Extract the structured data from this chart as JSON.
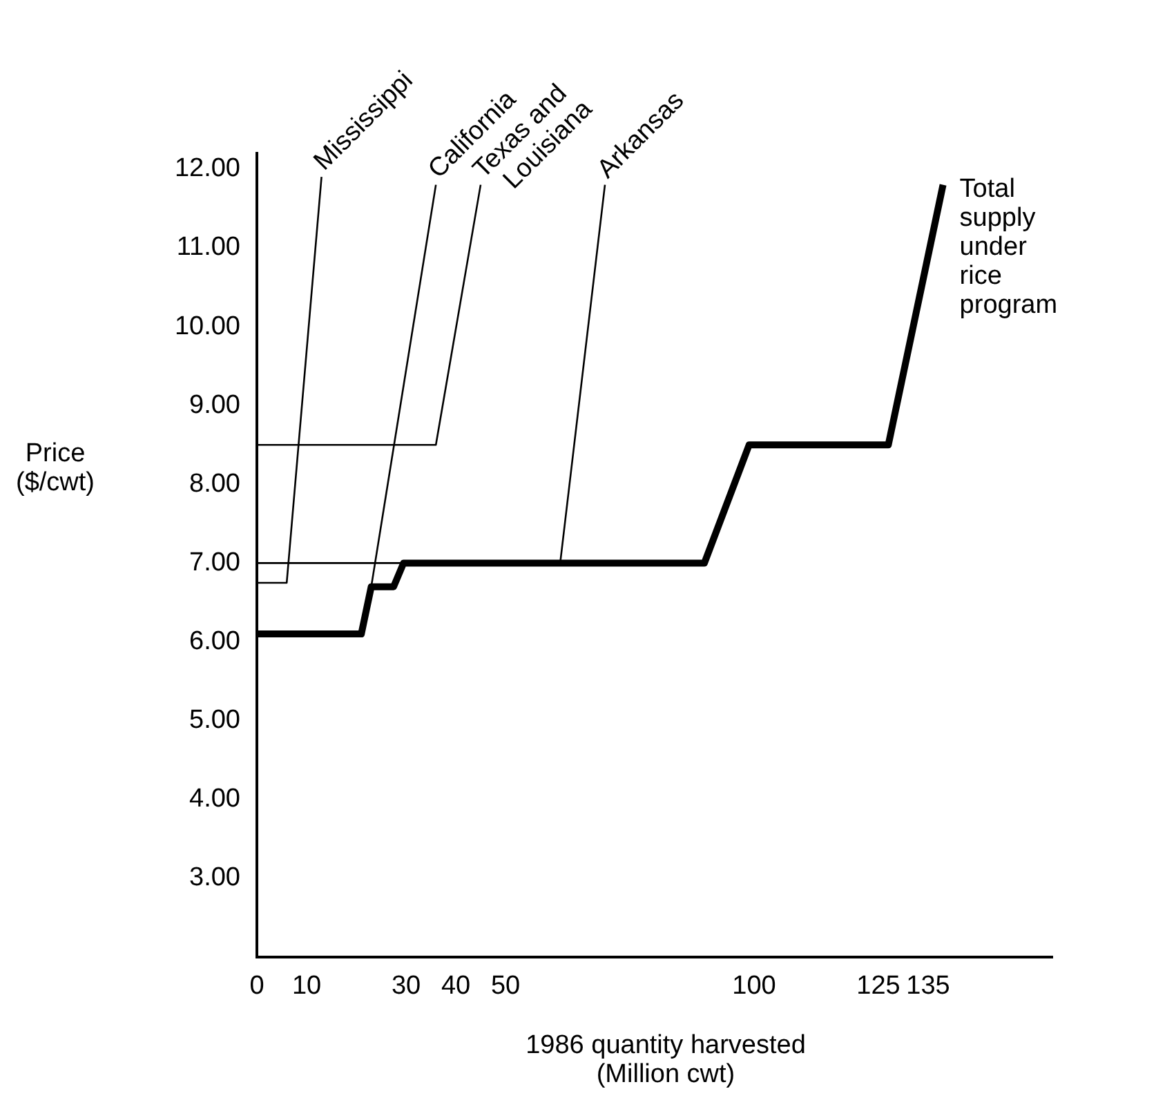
{
  "chart_data": {
    "type": "line",
    "xlabel": "1986 quantity harvested (Million cwt)",
    "ylabel": "Price ($/cwt)",
    "xlim": [
      0,
      160
    ],
    "xticks": [
      0,
      10,
      30,
      40,
      50,
      100,
      125,
      135
    ],
    "ylim": [
      2,
      12.2
    ],
    "yticks": [
      {
        "value": 3,
        "label": "3.00"
      },
      {
        "value": 4,
        "label": "4.00"
      },
      {
        "value": 5,
        "label": "5.00"
      },
      {
        "value": 6,
        "label": "6.00"
      },
      {
        "value": 7,
        "label": "7.00"
      },
      {
        "value": 8,
        "label": "8.00"
      },
      {
        "value": 9,
        "label": "9.00"
      },
      {
        "value": 10,
        "label": "10.00"
      },
      {
        "value": 11,
        "label": "11.00"
      },
      {
        "value": 12,
        "label": "12.00"
      }
    ],
    "grid": false,
    "series": [
      {
        "name": "Mississippi",
        "color": "#000000",
        "x": [
          0,
          6,
          13
        ],
        "values": [
          6.75,
          6.75,
          11.9
        ]
      },
      {
        "name": "California",
        "color": "#000000",
        "x": [
          23,
          36
        ],
        "values": [
          6.7,
          11.8
        ]
      },
      {
        "name": "Texas and Louisiana",
        "color": "#000000",
        "x": [
          0,
          36,
          45
        ],
        "values": [
          8.5,
          8.5,
          11.8
        ]
      },
      {
        "name": "Arkansas",
        "color": "#000000",
        "x": [
          0,
          61,
          70
        ],
        "values": [
          7,
          7,
          11.8
        ]
      },
      {
        "name": "Total supply under rice program",
        "color": "#000000",
        "x": [
          0,
          21,
          23,
          27.5,
          29.5,
          90,
          99,
          127,
          138
        ],
        "values": [
          6.1,
          6.1,
          6.7,
          6.7,
          7,
          7,
          8.5,
          8.5,
          11.8
        ]
      }
    ]
  }
}
